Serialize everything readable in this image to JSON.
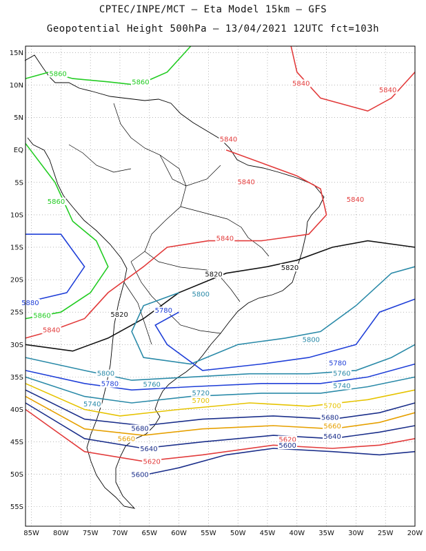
{
  "titles": {
    "line1": "CPTEC/INPE/MCT –  Eta Model 15km – GFS",
    "line2": "Geopotential Height 500hPa – 13/04/2021 12UTC fct=103h"
  },
  "axes": {
    "lat_ticks": [
      "15N",
      "10N",
      "5N",
      "EQ",
      "5S",
      "10S",
      "15S",
      "20S",
      "25S",
      "30S",
      "35S",
      "40S",
      "45S",
      "50S",
      "55S"
    ],
    "lon_ticks": [
      "85W",
      "80W",
      "75W",
      "70W",
      "65W",
      "60W",
      "55W",
      "50W",
      "45W",
      "40W",
      "35W",
      "30W",
      "25W",
      "20W"
    ],
    "lat_range": [
      -58,
      16
    ],
    "lon_range": [
      -86,
      -20
    ],
    "grid": "dotted"
  },
  "contour_labels": [
    {
      "text": "5860",
      "lon": -80.5,
      "lat": 11.5,
      "color": "#22cc22"
    },
    {
      "text": "5860",
      "lon": -66.5,
      "lat": 10.2,
      "color": "#22cc22"
    },
    {
      "text": "5860",
      "lon": -80.8,
      "lat": -8.2,
      "color": "#22cc22"
    },
    {
      "text": "5860",
      "lon": -83.2,
      "lat": -25.8,
      "color": "#22cc22"
    },
    {
      "text": "5880",
      "lon": -85.2,
      "lat": -23.8,
      "color": "#1f3fd8"
    },
    {
      "text": "5840",
      "lon": -39.3,
      "lat": 10.0,
      "color": "#e23b3b"
    },
    {
      "text": "5840",
      "lon": -24.6,
      "lat": 9.0,
      "color": "#e23b3b"
    },
    {
      "text": "5840",
      "lon": -51.6,
      "lat": 1.4,
      "color": "#e23b3b"
    },
    {
      "text": "5840",
      "lon": -48.6,
      "lat": -5.2,
      "color": "#e23b3b"
    },
    {
      "text": "5840",
      "lon": -30.1,
      "lat": -7.9,
      "color": "#e23b3b"
    },
    {
      "text": "5840",
      "lon": -52.2,
      "lat": -13.9,
      "color": "#e23b3b"
    },
    {
      "text": "5840",
      "lon": -81.6,
      "lat": -28.0,
      "color": "#e23b3b"
    },
    {
      "text": "5820",
      "lon": -54.1,
      "lat": -19.4,
      "color": "#111111"
    },
    {
      "text": "5820",
      "lon": -41.2,
      "lat": -18.4,
      "color": "#111111"
    },
    {
      "text": "5820",
      "lon": -70.1,
      "lat": -25.6,
      "color": "#111111"
    },
    {
      "text": "5800",
      "lon": -56.3,
      "lat": -22.5,
      "color": "#2a8aa8"
    },
    {
      "text": "5800",
      "lon": -37.6,
      "lat": -29.5,
      "color": "#2a8aa8"
    },
    {
      "text": "5800",
      "lon": -72.4,
      "lat": -34.7,
      "color": "#2a8aa8"
    },
    {
      "text": "5780",
      "lon": -62.6,
      "lat": -25.0,
      "color": "#1f3fd8"
    },
    {
      "text": "5780",
      "lon": -33.1,
      "lat": -33.1,
      "color": "#1f3fd8"
    },
    {
      "text": "5780",
      "lon": -71.7,
      "lat": -36.3,
      "color": "#1f3fd8"
    },
    {
      "text": "5760",
      "lon": -64.6,
      "lat": -36.4,
      "color": "#2a8aa8"
    },
    {
      "text": "5760",
      "lon": -32.4,
      "lat": -34.7,
      "color": "#2a8aa8"
    },
    {
      "text": "5740",
      "lon": -74.7,
      "lat": -39.4,
      "color": "#2a8aa8"
    },
    {
      "text": "5740",
      "lon": -32.4,
      "lat": -36.6,
      "color": "#2a8aa8"
    },
    {
      "text": "5720",
      "lon": -56.3,
      "lat": -37.7,
      "color": "#2a8aa8"
    },
    {
      "text": "5700",
      "lon": -56.3,
      "lat": -38.9,
      "color": "#e6c300"
    },
    {
      "text": "5700",
      "lon": -34.0,
      "lat": -39.7,
      "color": "#e6c300"
    },
    {
      "text": "5680",
      "lon": -66.6,
      "lat": -43.2,
      "color": "#1a2e8a"
    },
    {
      "text": "5680",
      "lon": -34.4,
      "lat": -41.5,
      "color": "#1a2e8a"
    },
    {
      "text": "5660",
      "lon": -68.9,
      "lat": -44.8,
      "color": "#e6a000"
    },
    {
      "text": "5660",
      "lon": -34.0,
      "lat": -42.8,
      "color": "#e6a000"
    },
    {
      "text": "5640",
      "lon": -65.1,
      "lat": -46.3,
      "color": "#1a2e8a"
    },
    {
      "text": "5640",
      "lon": -34.0,
      "lat": -44.4,
      "color": "#1a2e8a"
    },
    {
      "text": "5620",
      "lon": -64.6,
      "lat": -48.3,
      "color": "#e23b3b"
    },
    {
      "text": "5620",
      "lon": -41.6,
      "lat": -44.9,
      "color": "#e23b3b"
    },
    {
      "text": "5600",
      "lon": -41.6,
      "lat": -45.8,
      "color": "#1a2e8a"
    },
    {
      "text": "5600",
      "lon": -66.6,
      "lat": -50.3,
      "color": "#1a2e8a"
    }
  ]
}
